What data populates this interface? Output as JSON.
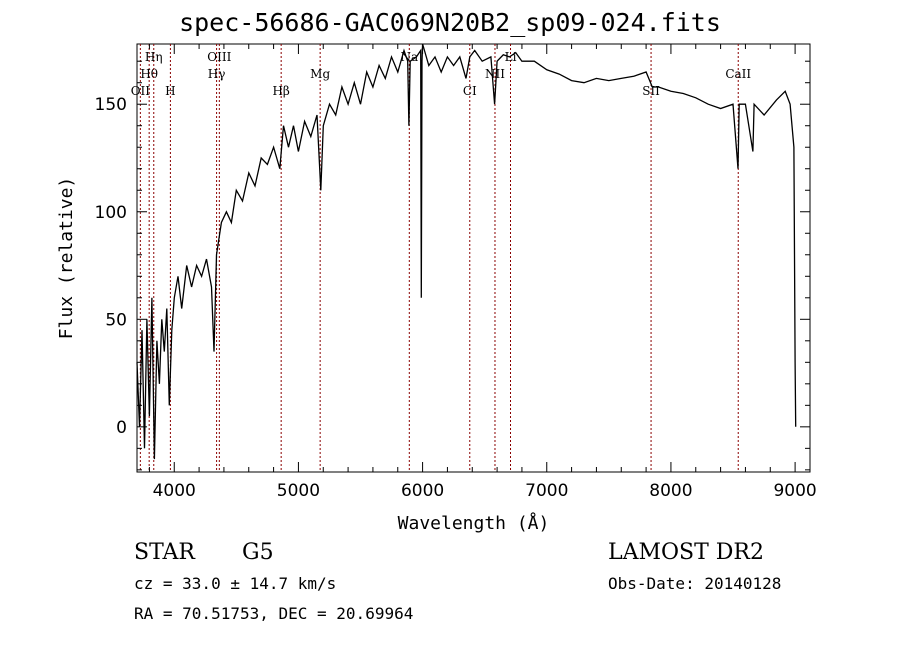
{
  "chart_data": {
    "type": "line",
    "title": "spec-56686-GAC069N20B2_sp09-024.fits",
    "xlabel": "Wavelength (Å)",
    "ylabel": "Flux (relative)",
    "xlim": [
      3700,
      9120
    ],
    "ylim": [
      -21,
      178
    ],
    "xticks": [
      4000,
      5000,
      6000,
      7000,
      8000,
      9000
    ],
    "xtick_labels": [
      "4000",
      "5000",
      "6000",
      "7000",
      "8000",
      "9000"
    ],
    "yticks": [
      0,
      50,
      100,
      150
    ],
    "ytick_labels": [
      "0",
      "50",
      "100",
      "150"
    ],
    "series": [
      {
        "name": "flux",
        "x": [
          3700,
          3720,
          3740,
          3760,
          3780,
          3800,
          3820,
          3840,
          3860,
          3880,
          3900,
          3920,
          3940,
          3960,
          3980,
          4000,
          4030,
          4060,
          4100,
          4140,
          4180,
          4220,
          4260,
          4300,
          4320,
          4340,
          4380,
          4420,
          4460,
          4500,
          4550,
          4600,
          4650,
          4700,
          4750,
          4800,
          4850,
          4880,
          4920,
          4960,
          5000,
          5050,
          5100,
          5150,
          5180,
          5200,
          5250,
          5300,
          5350,
          5400,
          5450,
          5500,
          5550,
          5600,
          5650,
          5700,
          5750,
          5800,
          5850,
          5880,
          5890,
          5900,
          5950,
          5985,
          5990,
          5995,
          6000,
          6050,
          6100,
          6150,
          6200,
          6250,
          6300,
          6350,
          6380,
          6420,
          6480,
          6550,
          6580,
          6600,
          6650,
          6700,
          6750,
          6800,
          6900,
          7000,
          7100,
          7200,
          7300,
          7400,
          7500,
          7600,
          7700,
          7800,
          7850,
          7900,
          8000,
          8100,
          8200,
          8300,
          8400,
          8500,
          8540,
          8550,
          8600,
          8660,
          8670,
          8750,
          8850,
          8920,
          8960,
          8990,
          9000,
          9005
        ],
        "y": [
          30,
          0,
          45,
          -10,
          50,
          5,
          60,
          -15,
          40,
          20,
          50,
          35,
          55,
          10,
          45,
          60,
          70,
          55,
          75,
          65,
          75,
          70,
          78,
          65,
          35,
          80,
          95,
          100,
          95,
          110,
          105,
          118,
          112,
          125,
          122,
          130,
          120,
          140,
          130,
          140,
          128,
          142,
          135,
          145,
          110,
          140,
          150,
          145,
          158,
          150,
          160,
          150,
          165,
          158,
          168,
          162,
          172,
          165,
          175,
          170,
          140,
          170,
          172,
          175,
          60,
          170,
          178,
          168,
          172,
          165,
          172,
          168,
          172,
          162,
          172,
          175,
          170,
          172,
          150,
          170,
          173,
          172,
          174,
          170,
          170,
          166,
          164,
          161,
          160,
          162,
          161,
          162,
          163,
          165,
          158,
          158,
          156,
          155,
          153,
          150,
          148,
          150,
          120,
          150,
          150,
          128,
          150,
          145,
          152,
          156,
          150,
          130,
          30,
          0
        ]
      }
    ],
    "lines": [
      {
        "label": "OII",
        "wave": 3727,
        "row": 3
      },
      {
        "label": "Hθ",
        "wave": 3798,
        "row": 2
      },
      {
        "label": "Hη",
        "wave": 3835,
        "row": 1
      },
      {
        "label": "H",
        "wave": 3969,
        "row": 3
      },
      {
        "label": "Hγ",
        "wave": 4341,
        "row": 2
      },
      {
        "label": "OIII",
        "wave": 4363,
        "row": 1
      },
      {
        "label": "Hβ",
        "wave": 4861,
        "row": 3
      },
      {
        "label": "Mg",
        "wave": 5175,
        "row": 2
      },
      {
        "label": "Na",
        "wave": 5893,
        "row": 1
      },
      {
        "label": "CI",
        "wave": 6380,
        "row": 3
      },
      {
        "label": "NII",
        "wave": 6583,
        "row": 2
      },
      {
        "label": "Li",
        "wave": 6708,
        "row": 1
      },
      {
        "label": "SII",
        "wave": 7840,
        "row": 3
      },
      {
        "label": "CaII",
        "wave": 8542,
        "row": 2
      }
    ],
    "colors": {
      "line": "#000000",
      "marker": "#8b0000"
    }
  },
  "info": {
    "class": "STAR",
    "subclass": "G5",
    "cz": "cz = 33.0 ± 14.7 km/s",
    "radec": "RA =  70.51753, DEC =  20.69964",
    "survey": "LAMOST DR2",
    "obsdate": "Obs-Date: 20140128"
  }
}
